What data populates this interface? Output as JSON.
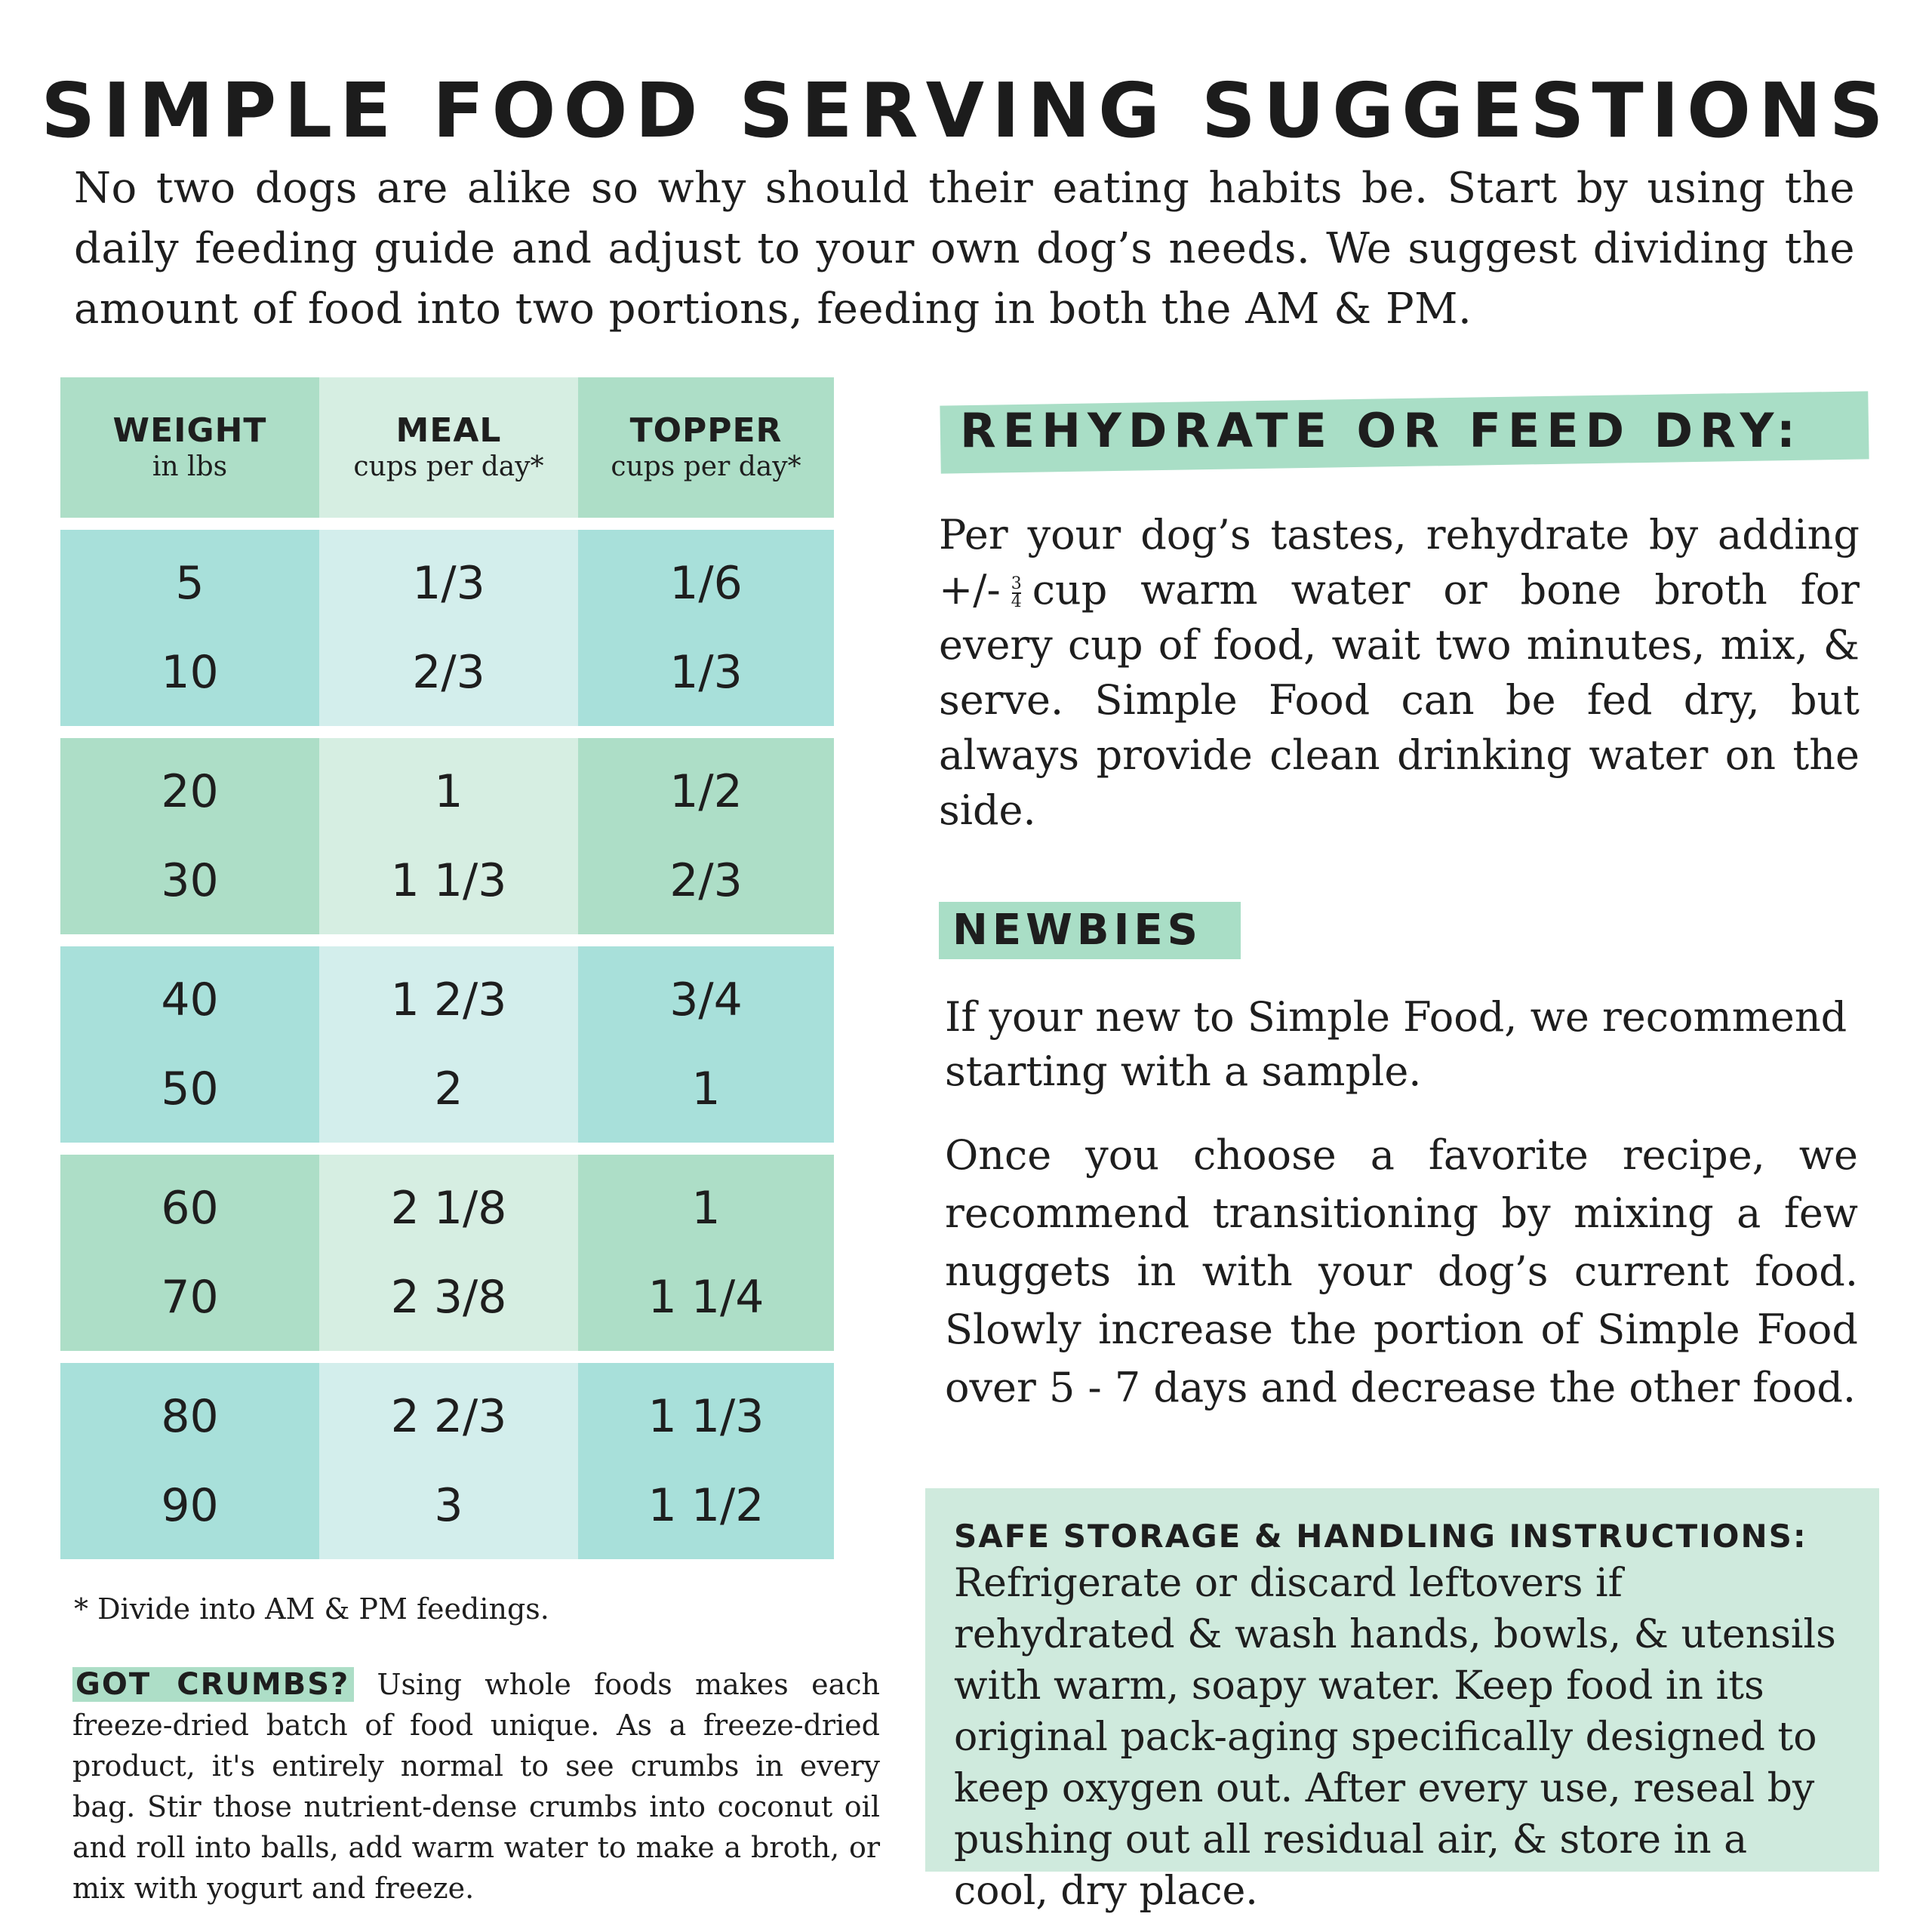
{
  "title": "SIMPLE FOOD SERVING SUGGESTIONS",
  "intro": "No two dogs are alike so why should their eating habits be. Start by using the daily feeding guide and adjust to your own dog’s needs. We suggest dividing the amount of food into two portions, feeding in both the AM & PM.",
  "table": {
    "headers": [
      {
        "label": "WEIGHT",
        "sub": "in lbs"
      },
      {
        "label": "MEAL",
        "sub": "cups per day*"
      },
      {
        "label": "TOPPER",
        "sub": "cups per day*"
      }
    ],
    "groups": [
      {
        "rows": [
          {
            "weight": "5",
            "meal": "1/3",
            "topper": "1/6"
          },
          {
            "weight": "10",
            "meal": "2/3",
            "topper": "1/3"
          }
        ]
      },
      {
        "rows": [
          {
            "weight": "20",
            "meal": "1",
            "topper": "1/2"
          },
          {
            "weight": "30",
            "meal": "1 1/3",
            "topper": "2/3"
          }
        ]
      },
      {
        "rows": [
          {
            "weight": "40",
            "meal": "1 2/3",
            "topper": "3/4"
          },
          {
            "weight": "50",
            "meal": "2",
            "topper": "1"
          }
        ]
      },
      {
        "rows": [
          {
            "weight": "60",
            "meal": "2 1/8",
            "topper": "1"
          },
          {
            "weight": "70",
            "meal": "2 3/8",
            "topper": "1 1/4"
          }
        ]
      },
      {
        "rows": [
          {
            "weight": "80",
            "meal": "2 2/3",
            "topper": "1 1/3"
          },
          {
            "weight": "90",
            "meal": "3",
            "topper": "1 1/2"
          }
        ]
      }
    ],
    "footnote": "* Divide into AM & PM feedings."
  },
  "crumbs": {
    "tag": "GOT CRUMBS?",
    "text": " Using whole foods makes each freeze-dried batch of food unique. As a freeze-dried product, it's entirely normal to see crumbs in every bag. Stir those nutrient-dense crumbs into coconut oil and roll into balls, add warm water to make a broth, or mix with yogurt and freeze."
  },
  "rehydrate": {
    "title": "REHYDRATE OR FEED DRY:",
    "text_before": "Per your dog’s tastes, rehydrate by adding +/-",
    "fraction_num": "3",
    "fraction_den": "4",
    "text_after": "cup warm water or bone broth for every cup of food, wait two minutes, mix, & serve. Simple Food can be fed dry, but always provide clean drinking water on the side."
  },
  "newbies": {
    "title": "NEWBIES",
    "p1": "If your new to Simple Food, we recommend starting with a sample.",
    "p2": "Once you choose a favorite recipe, we recommend transitioning by mixing a few nuggets in with your dog’s current food. Slowly increase the portion of Simple Food over 5 - 7 days and decrease the other food."
  },
  "storage": {
    "title": "SAFE STORAGE & HANDLING INSTRUCTIONS:",
    "text": "Refrigerate or discard leftovers if rehydrated & wash hands, bowls, & utensils with warm, soapy water. Keep food in its original pack-aging specifically designed to keep oxygen out. After every use, reseal by pushing out all residual air, & store in a cool, dry place."
  },
  "colors": {
    "mint": "#addec7",
    "mint_light": "#d6eee2",
    "teal": "#a8e0da",
    "teal_light": "#d3eeec",
    "storage_bg": "#cfeadd"
  }
}
